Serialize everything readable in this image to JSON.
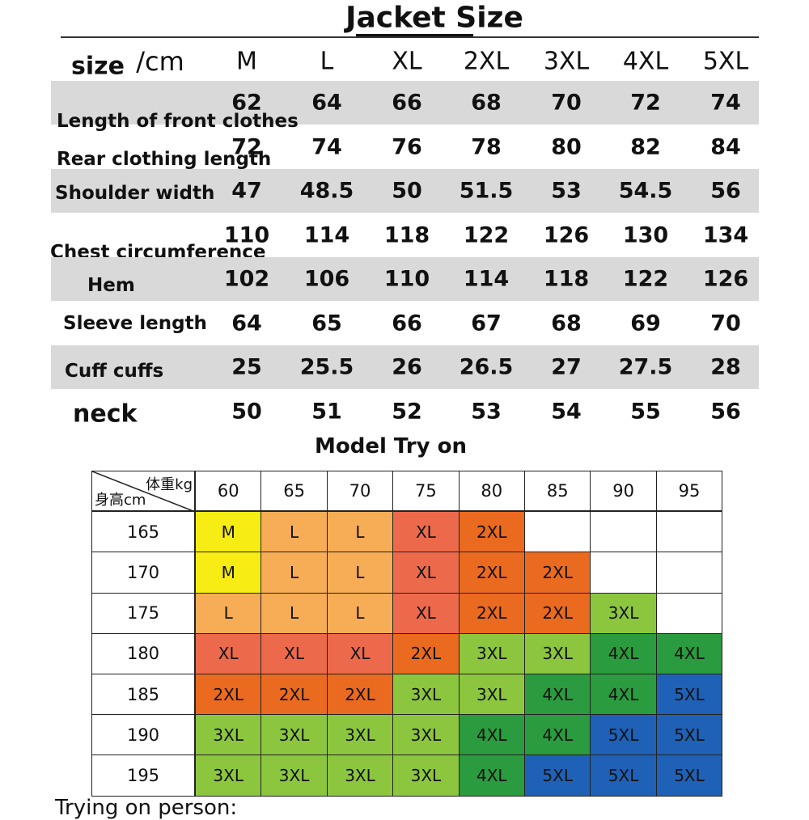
{
  "header": {
    "title": "Jacket Size"
  },
  "size_table": {
    "size_label": "size",
    "unit_label": "/cm",
    "sizes": [
      "M",
      "L",
      "XL",
      "2XL",
      "3XL",
      "4XL",
      "5XL"
    ],
    "stripe_color": "#d9d9d9",
    "rows": [
      {
        "label": "Length of front clothes",
        "values": [
          62,
          64,
          66,
          68,
          70,
          72,
          74
        ]
      },
      {
        "label": "Rear clothing length",
        "values": [
          72,
          74,
          76,
          78,
          80,
          82,
          84
        ]
      },
      {
        "label": "Shoulder width",
        "values": [
          47,
          48.5,
          50,
          51.5,
          53,
          54.5,
          56
        ]
      },
      {
        "label": "Chest circumference",
        "values": [
          110,
          114,
          118,
          122,
          126,
          130,
          134
        ]
      },
      {
        "label": "Hem",
        "values": [
          102,
          106,
          110,
          114,
          118,
          122,
          126
        ]
      },
      {
        "label": "Sleeve length",
        "values": [
          64,
          65,
          66,
          67,
          68,
          69,
          70
        ]
      },
      {
        "label": "Cuff cuffs",
        "values": [
          25,
          25.5,
          26,
          26.5,
          27,
          27.5,
          28
        ]
      },
      {
        "label": "neck",
        "values": [
          50,
          51,
          52,
          53,
          54,
          55,
          56
        ]
      }
    ]
  },
  "model_try_on": {
    "title": "Model Try on",
    "weight_label": "体重kg",
    "height_label": "身高cm",
    "weights": [
      60,
      65,
      70,
      75,
      80,
      85,
      90,
      95
    ],
    "heights": [
      165,
      170,
      175,
      180,
      185,
      190,
      195
    ],
    "cells": [
      [
        "M",
        "L",
        "L",
        "XL",
        "2XL",
        null,
        null,
        null
      ],
      [
        "M",
        "L",
        "L",
        "XL",
        "2XL",
        "2XL",
        null,
        null
      ],
      [
        "L",
        "L",
        "L",
        "XL",
        "2XL",
        "2XL",
        "3XL",
        null
      ],
      [
        "XL",
        "XL",
        "XL",
        "2XL",
        "3XL",
        "3XL",
        "4XL",
        "4XL"
      ],
      [
        "2XL",
        "2XL",
        "2XL",
        "3XL",
        "3XL",
        "4XL",
        "4XL",
        "5XL"
      ],
      [
        "3XL",
        "3XL",
        "3XL",
        "3XL",
        "4XL",
        "4XL",
        "5XL",
        "5XL"
      ],
      [
        "3XL",
        "3XL",
        "3XL",
        "3XL",
        "4XL",
        "5XL",
        "5XL",
        "5XL"
      ]
    ],
    "colors": {
      "M": "#f7ec14",
      "L": "#f6ad56",
      "XL": "#ec6a4b",
      "2XL": "#ea6a1f",
      "3XL": "#8cc63e",
      "4XL": "#2a9b3e",
      "5XL": "#1e61b6"
    }
  },
  "footer": {
    "text": "Trying on person:"
  }
}
